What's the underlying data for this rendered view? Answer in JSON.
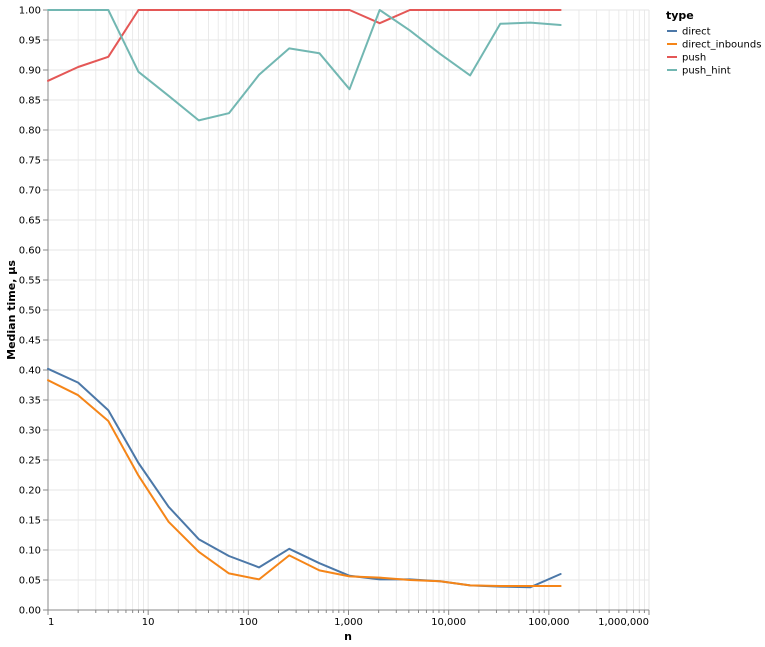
{
  "chart_data": {
    "type": "line",
    "xlabel": "n",
    "ylabel": "Median time, µs",
    "x_scale": "log",
    "xlim": [
      1,
      1000000
    ],
    "ylim": [
      0,
      1
    ],
    "grid": true,
    "legend_position": "top-right",
    "legend_title": "type",
    "x_ticks": [
      {
        "value": 1,
        "label": "1"
      },
      {
        "value": 10,
        "label": "10"
      },
      {
        "value": 100,
        "label": "100"
      },
      {
        "value": 1000,
        "label": "1,000"
      },
      {
        "value": 10000,
        "label": "10,000"
      },
      {
        "value": 100000,
        "label": "100,000"
      },
      {
        "value": 1000000,
        "label": "1,000,000"
      }
    ],
    "y_ticks": [
      "0.00",
      "0.05",
      "0.10",
      "0.15",
      "0.20",
      "0.25",
      "0.30",
      "0.35",
      "0.40",
      "0.45",
      "0.50",
      "0.55",
      "0.60",
      "0.65",
      "0.70",
      "0.75",
      "0.80",
      "0.85",
      "0.90",
      "0.95",
      "1.00"
    ],
    "x": [
      1,
      2,
      4,
      8,
      16,
      32,
      64,
      128,
      256,
      512,
      1024,
      2048,
      4096,
      8192,
      16384,
      32768,
      65536,
      131072
    ],
    "series": [
      {
        "name": "direct",
        "color": "#4c78a8",
        "values": [
          0.402,
          0.379,
          0.333,
          0.245,
          0.172,
          0.118,
          0.09,
          0.071,
          0.102,
          0.078,
          0.057,
          0.051,
          0.051,
          0.048,
          0.041,
          0.039,
          0.038,
          0.06
        ]
      },
      {
        "name": "direct_inbounds",
        "color": "#f58518",
        "values": [
          0.383,
          0.358,
          0.315,
          0.224,
          0.147,
          0.097,
          0.061,
          0.051,
          0.091,
          0.066,
          0.056,
          0.054,
          0.05,
          0.048,
          0.041,
          0.04,
          0.04,
          0.04
        ]
      },
      {
        "name": "push",
        "color": "#e45756",
        "values": [
          0.882,
          0.905,
          0.922,
          1.0,
          1.0,
          1.0,
          1.0,
          1.0,
          1.0,
          1.0,
          1.0,
          0.978,
          1.0,
          1.0,
          1.0,
          1.0,
          1.0,
          1.0
        ]
      },
      {
        "name": "push_hint",
        "color": "#72b7b2",
        "values": [
          1.0,
          1.0,
          1.0,
          0.897,
          0.857,
          0.816,
          0.828,
          0.892,
          0.936,
          0.928,
          0.868,
          1.0,
          0.966,
          0.927,
          0.891,
          0.977,
          0.979,
          0.975
        ]
      }
    ]
  }
}
